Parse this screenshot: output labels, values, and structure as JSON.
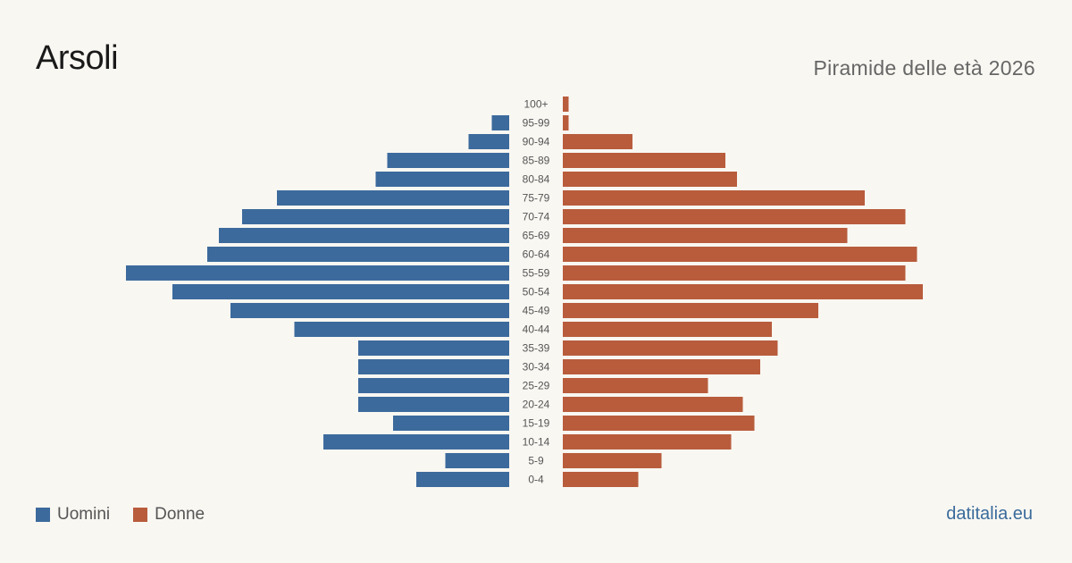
{
  "header": {
    "title": "Arsoli",
    "subtitle": "Piramide delle età 2026"
  },
  "legend": {
    "men_label": "Uomini",
    "women_label": "Donne"
  },
  "source": "datitalia.eu",
  "colors": {
    "men": "#3c6a9c",
    "women": "#b85c3c",
    "background": "#f9f7f2"
  },
  "chart_data": {
    "type": "bar",
    "orientation": "horizontal-pyramid",
    "title": "Arsoli",
    "subtitle": "Piramide delle età 2026",
    "categories": [
      "100+",
      "95-99",
      "90-94",
      "85-89",
      "80-84",
      "75-79",
      "70-74",
      "65-69",
      "60-64",
      "55-59",
      "50-54",
      "45-49",
      "40-44",
      "35-39",
      "30-34",
      "25-29",
      "20-24",
      "15-19",
      "10-14",
      "5-9",
      "0-4"
    ],
    "series": [
      {
        "name": "Uomini",
        "values": [
          0,
          3,
          7,
          21,
          23,
          40,
          46,
          50,
          52,
          66,
          58,
          48,
          37,
          26,
          26,
          26,
          26,
          20,
          32,
          11,
          16
        ]
      },
      {
        "name": "Donne",
        "values": [
          1,
          1,
          12,
          28,
          30,
          52,
          59,
          49,
          61,
          59,
          62,
          44,
          36,
          37,
          34,
          25,
          31,
          33,
          29,
          17,
          13
        ]
      }
    ],
    "grid": false,
    "legend_position": "bottom-left"
  }
}
